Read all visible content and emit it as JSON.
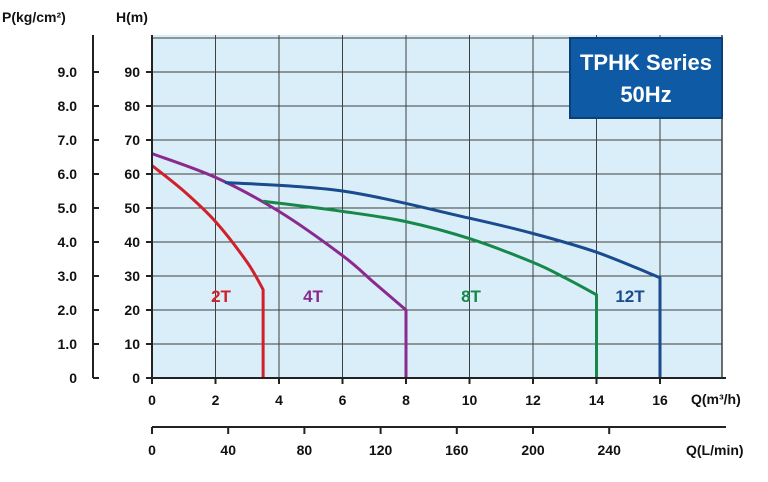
{
  "chart_data": {
    "type": "line",
    "title": "TPHK Series",
    "subtitle": "50Hz",
    "left_axis_title": "P(kg/cm²)",
    "head_axis_title": "H(m)",
    "xlabel": "Q(m³/h)",
    "x2label": "Q(L/min)",
    "xlim": [
      0,
      17.5
    ],
    "ylim": [
      0,
      100
    ],
    "grid": true,
    "legend": "labels placed beside each curve",
    "x_ticks": [
      "0",
      "2",
      "4",
      "6",
      "8",
      "10",
      "12",
      "14",
      "16"
    ],
    "x2_ticks": [
      "0",
      "40",
      "80",
      "120",
      "160",
      "200",
      "240"
    ],
    "head_ticks": [
      "0",
      "10",
      "20",
      "30",
      "40",
      "50",
      "60",
      "70",
      "80",
      "90"
    ],
    "pressure_ticks": [
      "0",
      "1.0",
      "2.0",
      "3.0",
      "4.0",
      "5.0",
      "6.0",
      "7.0",
      "8.0",
      "9.0"
    ],
    "series": [
      {
        "name": "2T",
        "color": "#d0202a",
        "points": [
          [
            0,
            62.5
          ],
          [
            1,
            55
          ],
          [
            2,
            46
          ],
          [
            3,
            34
          ],
          [
            3.5,
            26
          ],
          [
            3.5,
            0
          ]
        ]
      },
      {
        "name": "4T",
        "color": "#8b2a8e",
        "points": [
          [
            0,
            66
          ],
          [
            2,
            59
          ],
          [
            4,
            49
          ],
          [
            6,
            36
          ],
          [
            7,
            28
          ],
          [
            8,
            20
          ],
          [
            8,
            0
          ]
        ]
      },
      {
        "name": "8T",
        "color": "#17884a",
        "points": [
          [
            3.5,
            52
          ],
          [
            6,
            49
          ],
          [
            8,
            46
          ],
          [
            10,
            41
          ],
          [
            12,
            34
          ],
          [
            13,
            29.5
          ],
          [
            14,
            24.5
          ],
          [
            14,
            0
          ]
        ]
      },
      {
        "name": "12T",
        "color": "#1b4b8f",
        "points": [
          [
            2.3,
            57.5
          ],
          [
            6,
            55
          ],
          [
            10,
            47
          ],
          [
            12,
            42.5
          ],
          [
            14,
            37
          ],
          [
            16,
            29.5
          ],
          [
            16,
            0
          ]
        ]
      }
    ]
  },
  "colors": {
    "plot_background": "#d9eef8",
    "grid_line": "#404040",
    "badge_background": "#0e5aa5"
  }
}
